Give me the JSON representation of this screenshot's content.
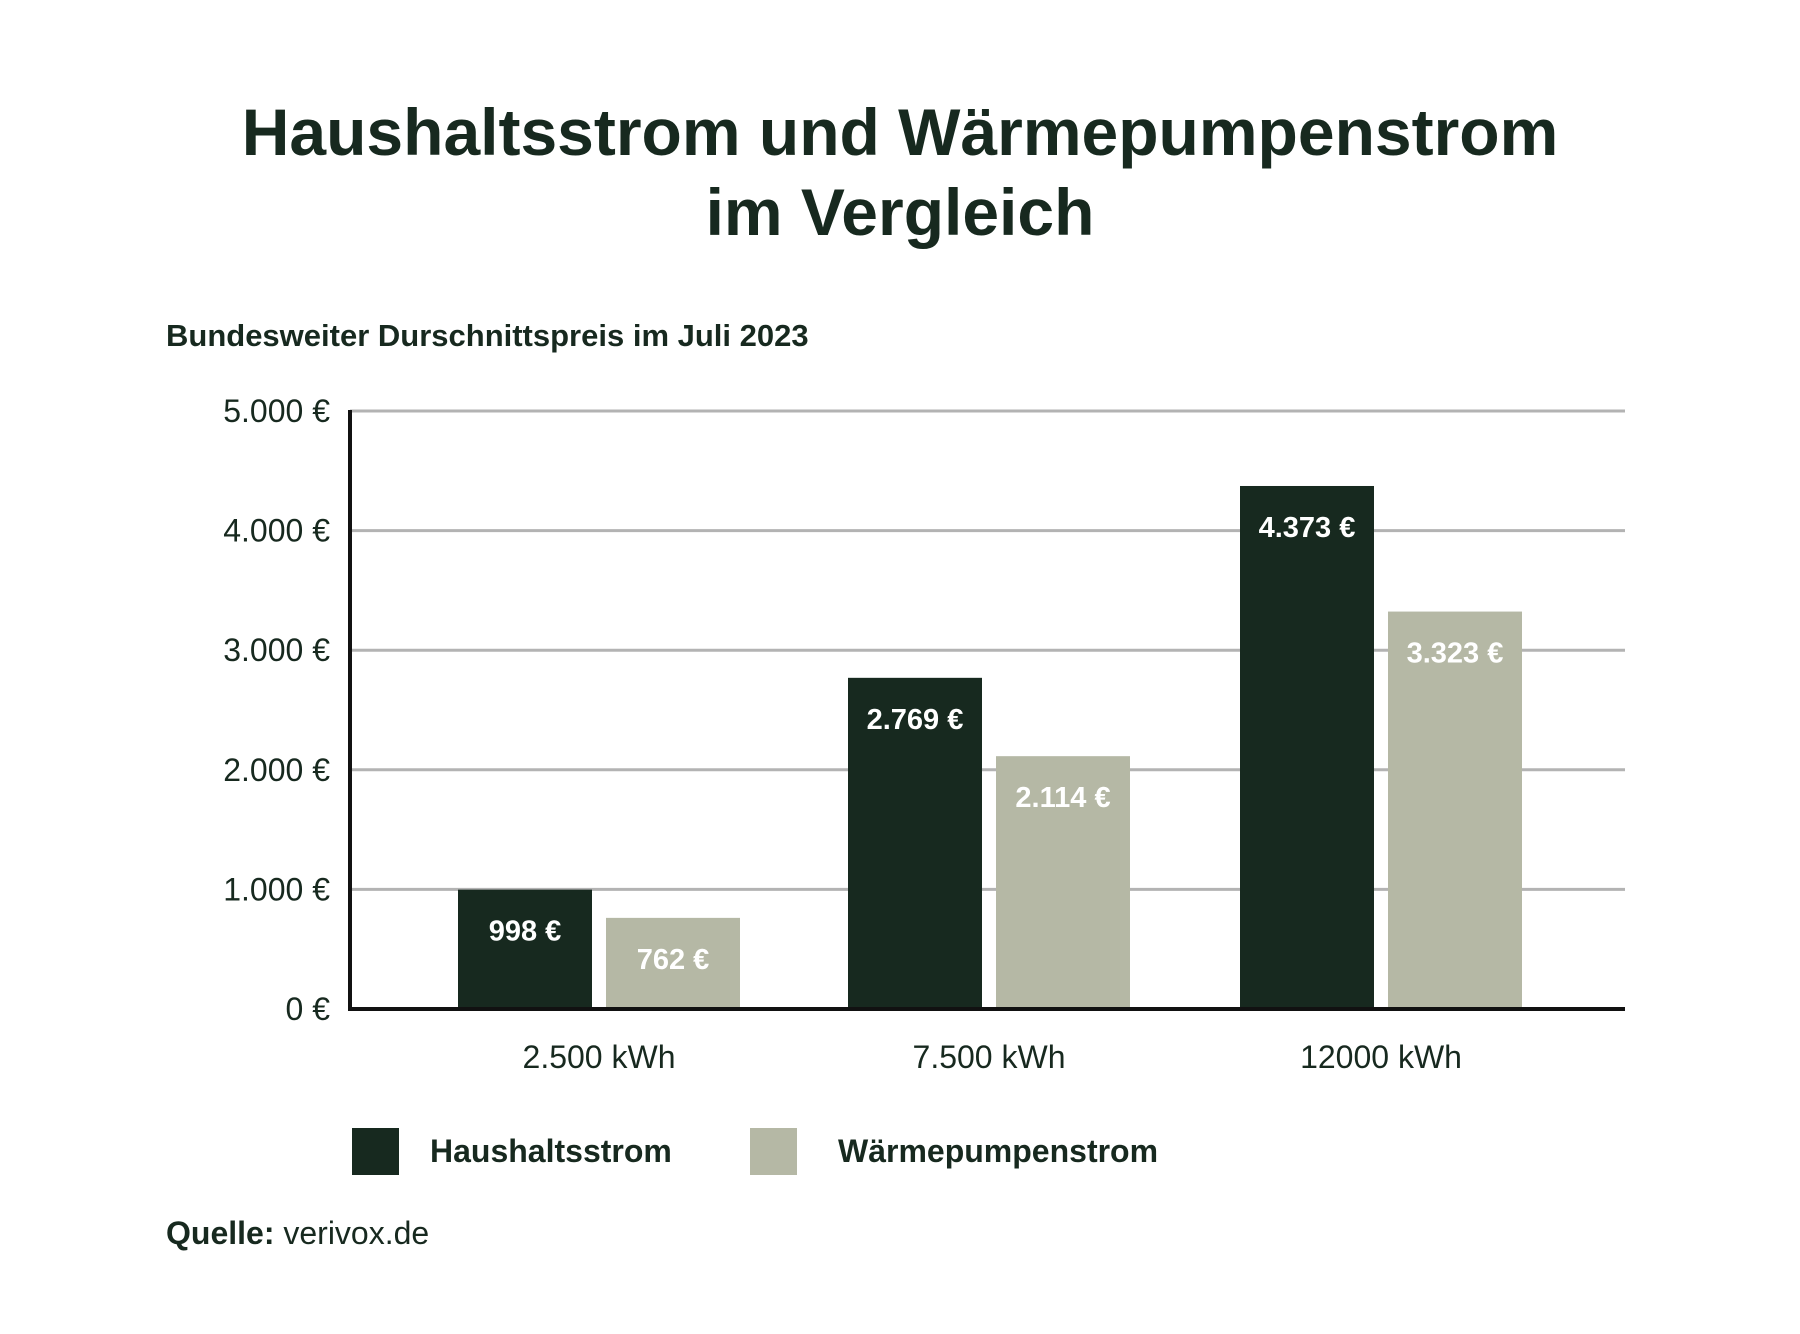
{
  "title_line1": "Haushaltsstrom und Wärmepumpenstrom",
  "title_line2": "im Vergleich",
  "subtitle": "Bundesweiter Durschnittspreis im Juli 2023",
  "legend": [
    {
      "label": "Haushaltsstrom",
      "color": "#17291f"
    },
    {
      "label": "Wärmepumpenstrom",
      "color": "#b5b8a5"
    }
  ],
  "source_label": "Quelle:",
  "source_value": "verivox.de",
  "colors": {
    "dark": "#17291f",
    "light": "#b5b8a5",
    "grid": "#b3b3b3",
    "axis": "#111111",
    "label_on_dark": "#ffffff",
    "label_on_light": "#ffffff"
  },
  "chart_data": {
    "type": "bar",
    "title": "Haushaltsstrom und Wärmepumpenstrom im Vergleich",
    "subtitle": "Bundesweiter Durschnittspreis im Juli 2023",
    "categories": [
      "2.500 kWh",
      "7.500 kWh",
      "12000 kWh"
    ],
    "series": [
      {
        "name": "Haushaltsstrom",
        "values": [
          998,
          2769,
          4373
        ],
        "labels": [
          "998 €",
          "2.769 €",
          "4.373 €"
        ]
      },
      {
        "name": "Wärmepumpenstrom",
        "values": [
          762,
          2114,
          3323
        ],
        "labels": [
          "762 €",
          "2.114 €",
          "3.323 €"
        ]
      }
    ],
    "y_ticks": [
      0,
      1000,
      2000,
      3000,
      4000,
      5000
    ],
    "y_tick_labels": [
      "0 €",
      "1.000 €",
      "2.000 €",
      "3.000 €",
      "4.000 €",
      "5.000 €"
    ],
    "ylim": [
      0,
      5000
    ],
    "grid": true,
    "legend_position": "bottom-left"
  }
}
